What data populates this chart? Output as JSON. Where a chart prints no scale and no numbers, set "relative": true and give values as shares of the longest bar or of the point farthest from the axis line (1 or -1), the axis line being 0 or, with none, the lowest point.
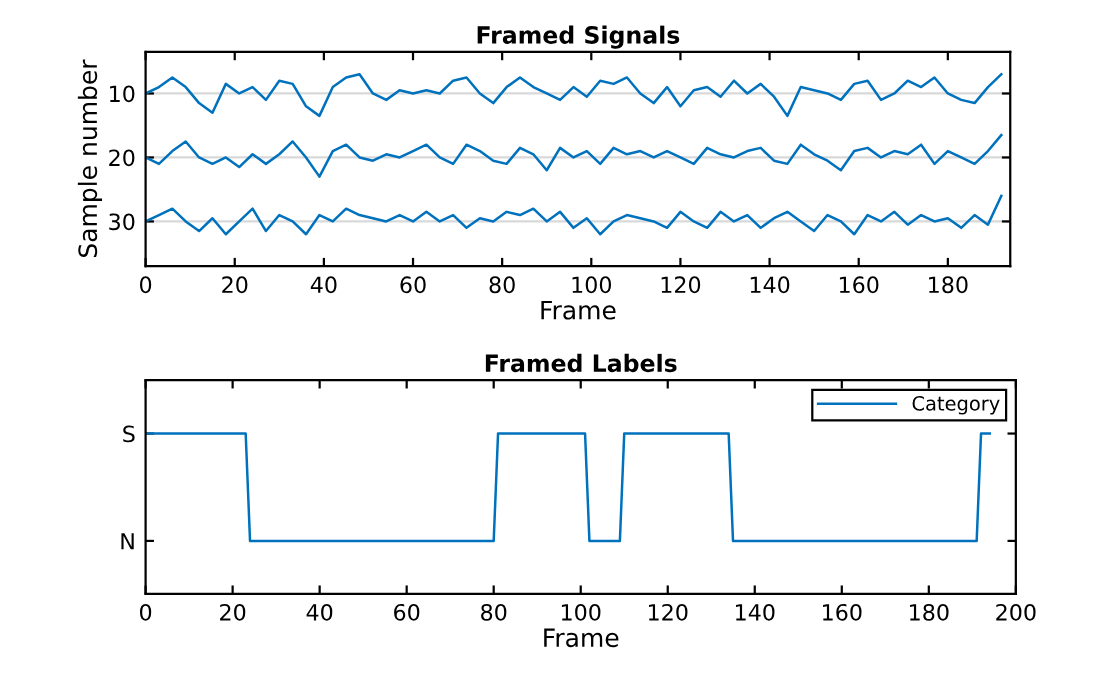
{
  "chart_data": [
    {
      "type": "line",
      "title": "Framed Signals",
      "xlabel": "Frame",
      "ylabel": "Sample number",
      "xlim": [
        0,
        194
      ],
      "xticks": [
        0,
        20,
        40,
        60,
        80,
        100,
        120,
        140,
        160,
        180
      ],
      "ylim": [
        37,
        3.5
      ],
      "yticks": [
        10,
        20,
        30
      ],
      "grid": "y",
      "legend": false,
      "x": [
        0,
        3,
        6,
        9,
        12,
        15,
        18,
        21,
        24,
        27,
        30,
        33,
        36,
        39,
        42,
        45,
        48,
        51,
        54,
        57,
        60,
        63,
        66,
        69,
        72,
        75,
        78,
        81,
        84,
        87,
        90,
        93,
        96,
        99,
        102,
        105,
        108,
        111,
        114,
        117,
        120,
        123,
        126,
        129,
        132,
        135,
        138,
        141,
        144,
        147,
        150,
        153,
        156,
        159,
        162,
        165,
        168,
        171,
        174,
        177,
        180,
        183,
        186,
        189,
        192
      ],
      "series": [
        {
          "color": "#0072bd",
          "values": [
            10,
            9,
            7.5,
            9,
            11.5,
            13,
            8.5,
            10,
            9,
            11,
            8,
            8.5,
            12,
            13.5,
            9,
            7.5,
            7,
            10,
            11,
            9.5,
            10,
            9.5,
            10,
            8,
            7.5,
            10,
            11.5,
            9,
            7.5,
            9,
            10,
            11,
            9,
            10.5,
            8,
            8.5,
            7.5,
            10,
            11.5,
            9,
            12,
            9.5,
            9,
            10.5,
            8,
            10,
            8.5,
            10.5,
            13.5,
            9,
            9.5,
            10,
            11,
            8.5,
            8,
            11,
            10,
            8,
            9,
            7.5,
            10,
            11,
            11.5,
            9,
            7
          ]
        },
        {
          "color": "#0072bd",
          "values": [
            20,
            21,
            19,
            17.5,
            20,
            21,
            20,
            21.5,
            19.5,
            21,
            19.5,
            17.5,
            20,
            23,
            19,
            18,
            20,
            20.5,
            19.5,
            20,
            19,
            18,
            20,
            21,
            18,
            19,
            20.5,
            21,
            18.5,
            19.5,
            22,
            18.5,
            20,
            19,
            21,
            18.5,
            19.5,
            19,
            20,
            19,
            20,
            21,
            18.5,
            19.5,
            20,
            19,
            18.5,
            20.5,
            21,
            18,
            19.5,
            20.5,
            22,
            19,
            18.5,
            20,
            19,
            19.5,
            18,
            21,
            19,
            20,
            21,
            19,
            16.5
          ]
        },
        {
          "color": "#0072bd",
          "values": [
            30,
            29,
            28,
            30,
            31.5,
            29.5,
            32,
            30,
            28,
            31.5,
            29,
            30,
            32,
            29,
            30,
            28,
            29,
            29.5,
            30,
            29,
            30,
            28.5,
            30,
            29,
            31,
            29.5,
            30,
            28.5,
            29,
            28,
            30,
            28.5,
            31,
            29.5,
            32,
            30,
            29,
            29.5,
            30,
            31,
            28.5,
            30,
            31,
            28.5,
            30,
            29,
            31,
            29.5,
            28.5,
            30,
            31.5,
            29,
            30,
            32,
            29,
            30,
            28.5,
            30.5,
            29,
            30,
            29.5,
            31,
            29,
            30.5,
            26
          ]
        }
      ]
    },
    {
      "type": "line",
      "title": "Framed Labels",
      "xlabel": "Frame",
      "xlim": [
        0,
        200
      ],
      "xticks": [
        0,
        20,
        40,
        60,
        80,
        100,
        120,
        140,
        160,
        180,
        200
      ],
      "relative": true,
      "y_categories": [
        "S",
        "N"
      ],
      "grid": false,
      "legend": "top right",
      "x": [
        0,
        23,
        24,
        80,
        81,
        101,
        102,
        109,
        110,
        134,
        135,
        191,
        192,
        194
      ],
      "series": [
        {
          "name": "Category",
          "color": "#0072bd",
          "values": [
            1,
            1,
            0.33,
            0.33,
            1,
            1,
            0.33,
            0.33,
            1,
            1,
            0.33,
            0.33,
            1,
            1
          ]
        }
      ]
    }
  ]
}
